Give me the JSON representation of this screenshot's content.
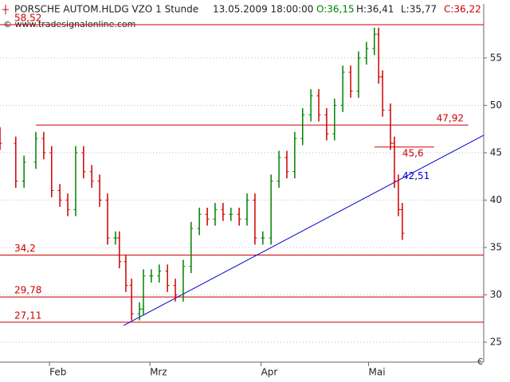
{
  "chart_data": {
    "type": "ohlc",
    "title": "PORSCHE AUTOM.HLDG VZO 1 Stunde",
    "header": {
      "datetime": "13.05.2009 18:00:00",
      "open": "O:36,15",
      "high": "H:36,41",
      "low": "L:35,77",
      "close": "C:36,22"
    },
    "copyright": "© www.tradesignalonline.com",
    "currency": "€",
    "x": [
      17.2,
      21.6,
      23.9,
      27.2,
      29.4,
      31.6,
      33.9,
      36.1,
      38.3,
      40.5,
      42.8,
      45.0,
      47.2,
      49.4,
      50.5,
      52.3,
      53.9,
      56.1,
      57.2,
      59.4,
      61.6,
      63.9,
      66.1,
      68.3,
      70.5,
      72.8,
      75.0,
      77.2,
      79.4,
      81.6,
      83.9,
      86.1,
      88.3,
      90.5,
      92.8,
      95.0,
      97.2,
      99.4,
      101.6,
      103.9,
      106.1,
      108.3,
      110.5,
      112.8,
      115.0,
      117.2,
      119.4,
      121.6,
      122.8,
      123.9,
      126.1,
      127.2,
      128.3,
      129.4
    ],
    "open": [
      47,
      46,
      42,
      44,
      46.5,
      45,
      41,
      40,
      39,
      45,
      43,
      42,
      40,
      36,
      36,
      33.5,
      31,
      28,
      28.5,
      32,
      32,
      32.5,
      31,
      30,
      33,
      37,
      38.5,
      38,
      39,
      38.5,
      38.5,
      38,
      40,
      36,
      36,
      42,
      44.5,
      43,
      46.5,
      49,
      51,
      49,
      47,
      50,
      53.5,
      51.5,
      55,
      56,
      57.5,
      53,
      49.5,
      46,
      42,
      39
    ],
    "high": [
      47.7,
      46.7,
      44.7,
      47.2,
      47.2,
      45.7,
      41.7,
      40.7,
      45.7,
      45.7,
      43.7,
      42.7,
      40.7,
      36.7,
      36.7,
      34.2,
      31.7,
      29.2,
      32.7,
      32.7,
      33.2,
      33.2,
      31.7,
      33.7,
      37.7,
      39.2,
      39.2,
      39.7,
      39.7,
      39.2,
      39.2,
      40.7,
      40.7,
      36.7,
      42.7,
      45.2,
      45.2,
      47.2,
      49.7,
      51.7,
      51.7,
      49.7,
      50.7,
      54.2,
      54.2,
      55.7,
      56.7,
      58.2,
      58.2,
      53.7,
      50.2,
      46.7,
      42.7,
      39.7
    ],
    "low": [
      45.3,
      41.3,
      41.3,
      43.3,
      44.3,
      40.3,
      39.3,
      38.3,
      38.3,
      42.3,
      41.3,
      39.3,
      35.3,
      35.3,
      32.8,
      30.3,
      27.3,
      27.3,
      27.8,
      31.3,
      31.3,
      30.3,
      29.3,
      29.3,
      32.3,
      36.3,
      37.3,
      37.3,
      37.8,
      37.8,
      37.3,
      37.3,
      35.3,
      35.3,
      35.3,
      41.3,
      42.3,
      42.3,
      45.8,
      48.3,
      48.3,
      46.3,
      46.3,
      49.3,
      50.8,
      50.8,
      54.3,
      55.3,
      52.3,
      48.8,
      45.3,
      41.3,
      38.3,
      35.8
    ],
    "close": [
      46,
      42,
      44,
      46.5,
      45,
      41,
      40,
      39,
      45,
      43,
      42,
      40,
      36,
      36,
      33.5,
      31,
      28,
      28.5,
      32,
      32,
      32.5,
      31,
      30,
      33,
      37,
      38.5,
      38,
      39,
      38.5,
      38.5,
      38,
      40,
      36,
      36,
      42,
      44.5,
      43,
      46.5,
      49,
      51,
      49,
      47,
      50,
      53.5,
      51.5,
      55,
      56,
      57.5,
      53,
      49.5,
      46,
      42,
      39,
      36.5
    ],
    "up_color": "#008000",
    "down_color": "#cc0000",
    "xlim": [
      17.2,
      152.1
    ],
    "xticks": [
      {
        "value": 31,
        "label": "Feb"
      },
      {
        "value": 59,
        "label": "Mrz"
      },
      {
        "value": 90,
        "label": "Apr"
      },
      {
        "value": 120,
        "label": "Mai"
      }
    ],
    "ylim": [
      22.9,
      60.7
    ],
    "yticks": [
      25,
      30,
      35,
      40,
      45,
      50,
      55
    ],
    "grid": true,
    "hlines": [
      {
        "value": 58.52,
        "label": "58,52",
        "color": "#cc0000"
      },
      {
        "value": 47.92,
        "label": "47,92",
        "color": "#cc0000",
        "x": [
          27.2,
          147.8
        ]
      },
      {
        "value": 45.6,
        "label": "45,6",
        "color": "#cc0000",
        "x": [
          121.6,
          138.3
        ]
      },
      {
        "value": 34.2,
        "label": "34,2",
        "color": "#cc0000"
      },
      {
        "value": 29.78,
        "label": "29,78",
        "color": "#cc0000"
      },
      {
        "value": 27.11,
        "label": "27,11",
        "color": "#cc0000"
      }
    ],
    "trendline": {
      "x": [
        51.7,
        152.1
      ],
      "y": [
        26.77,
        46.85
      ],
      "color": "#0000cc"
    },
    "annotations": [
      {
        "x": 127.2,
        "value": 42.51,
        "label": "42,51",
        "color": "#0000cc"
      }
    ]
  }
}
